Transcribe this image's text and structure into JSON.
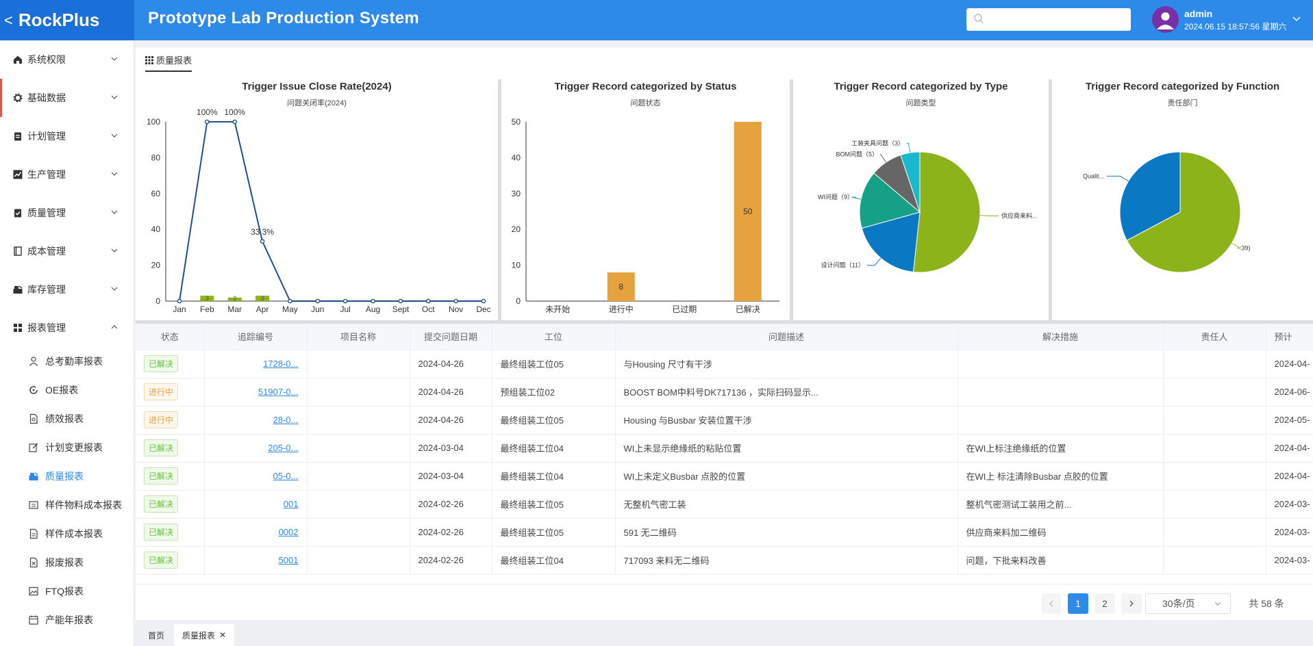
{
  "header": {
    "logo": "RockPlus",
    "title": "Prototype Lab Production System",
    "search_placeholder": "",
    "user": {
      "name": "admin",
      "datetime": "2024.06.15 18:57:56 星期六"
    }
  },
  "sidebar": {
    "menus": [
      "系统权限",
      "基础数据",
      "计划管理",
      "生产管理",
      "质量管理",
      "成本管理",
      "库存管理",
      "报表管理"
    ],
    "submenus": [
      "总考勤率报表",
      "OE报表",
      "绩效报表",
      "计划变更报表",
      "质量报表",
      "样件物料成本报表",
      "样件成本报表",
      "报废报表",
      "FTQ报表",
      "产能年报表"
    ],
    "active_submenu": "质量报表"
  },
  "page_tab": "质量报表",
  "chart_data": [
    {
      "type": "line",
      "title": "Trigger Issue Close Rate(2024)",
      "subtitle": "问题关闭率(2024)",
      "categories": [
        "Jan",
        "Feb",
        "Mar",
        "Apr",
        "May",
        "Jun",
        "Jul",
        "Aug",
        "Sept",
        "Oct",
        "Nov",
        "Dec"
      ],
      "series": [
        {
          "values": [
            0,
            100,
            100,
            33.3,
            0,
            0,
            0,
            0,
            0,
            0,
            0,
            0
          ]
        }
      ],
      "bars": [
        0,
        3,
        2,
        3,
        0,
        0,
        0,
        0,
        0,
        0,
        0,
        0
      ],
      "data_labels": [
        "",
        "100%",
        "100%",
        "33.3%",
        "",
        "",
        "",
        "",
        "",
        "",
        "",
        ""
      ],
      "bar_labels": [
        "",
        "3",
        "2",
        "3",
        "",
        "",
        "",
        "",
        "",
        "",
        "",
        ""
      ],
      "yticks": [
        0,
        20,
        40,
        60,
        80,
        100
      ],
      "ylim": [
        0,
        100
      ],
      "colors": {
        "line": "#1f4e8c",
        "bar": "#8db31a"
      }
    },
    {
      "type": "bar",
      "title": "Trigger Record categorized by Status",
      "subtitle": "问题状态",
      "categories": [
        "未开始",
        "进行中",
        "已过期",
        "已解决"
      ],
      "values": [
        0,
        8,
        0,
        50
      ],
      "data_labels": [
        "",
        "8",
        "",
        "50"
      ],
      "yticks": [
        0,
        10,
        20,
        30,
        40,
        50
      ],
      "ylim": [
        0,
        50
      ],
      "colors": {
        "bar": "#e6a23c"
      }
    },
    {
      "type": "pie",
      "title": "Trigger Record categorized by Type",
      "subtitle": "问题类型",
      "slices": [
        {
          "label": "供应商来料...",
          "value": 30,
          "color": "#8db31a"
        },
        {
          "label": "设计问题（11）",
          "value": 11,
          "color": "#0a78c2"
        },
        {
          "label": "WI问题（9）",
          "value": 9,
          "color": "#16a085"
        },
        {
          "label": "BOM问题（5）",
          "value": 5,
          "color": "#666666"
        },
        {
          "label": "工装夹具问题（3）",
          "value": 3,
          "color": "#19b8cc"
        }
      ]
    },
    {
      "type": "pie",
      "title": "Trigger Record categorized by Function",
      "subtitle": "责任部门",
      "slices": [
        {
          "label": ":39)",
          "value": 39,
          "color": "#8db31a"
        },
        {
          "label": "Qualit...",
          "value": 19,
          "color": "#0a78c2"
        }
      ]
    }
  ],
  "table": {
    "headers": [
      "状态",
      "追踪编号",
      "项目名称",
      "提交问题日期",
      "工位",
      "问题描述",
      "解决措施",
      "责任人",
      "预计"
    ],
    "rows": [
      {
        "status": "已解决",
        "status_type": "done",
        "id": "1728-0...",
        "project": "",
        "date": "2024-04-26",
        "station": "最终组装工位05",
        "desc": "与Housing 尺寸有干涉",
        "solution": "",
        "owner": "",
        "due": "2024-04-"
      },
      {
        "status": "进行中",
        "status_type": "prog",
        "id": "51907-0...",
        "project": "",
        "date": "2024-04-26",
        "station": "预组装工位02",
        "desc": "BOOST BOM中料号DK717136 ，实际扫码显示...",
        "solution": "",
        "owner": "",
        "due": "2024-06-"
      },
      {
        "status": "进行中",
        "status_type": "prog",
        "id": "28-0...",
        "project": "",
        "date": "2024-04-26",
        "station": "最终组装工位05",
        "desc": "Housing 与Busbar 安装位置干涉",
        "solution": "",
        "owner": "",
        "due": "2024-05-"
      },
      {
        "status": "已解决",
        "status_type": "done",
        "id": "205-0...",
        "project": "",
        "date": "2024-03-04",
        "station": "最终组装工位04",
        "desc": "WI上未显示绝缘纸的粘贴位置",
        "solution": "在WI上标注绝缘纸的位置",
        "owner": "",
        "due": "2024-04-"
      },
      {
        "status": "已解决",
        "status_type": "done",
        "id": "05-0...",
        "project": "",
        "date": "2024-03-04",
        "station": "最终组装工位04",
        "desc": "WI上未定义Busbar 点胶的位置",
        "solution": "在WI上 标注清除Busbar 点胶的位置",
        "owner": "",
        "due": "2024-04-"
      },
      {
        "status": "已解决",
        "status_type": "done",
        "id": "001",
        "project": "",
        "date": "2024-02-26",
        "station": "最终组装工位05",
        "desc": "无整机气密工装",
        "solution": "整机气密测试工装用之前...",
        "owner": "",
        "due": "2024-03-"
      },
      {
        "status": "已解决",
        "status_type": "done",
        "id": "0002",
        "project": "",
        "date": "2024-02-26",
        "station": "最终组装工位05",
        "desc": "591 无二维码",
        "solution": "供应商来料加二维码",
        "owner": "",
        "due": "2024-03-"
      },
      {
        "status": "已解决",
        "status_type": "done",
        "id": "5001",
        "project": "",
        "date": "2024-02-26",
        "station": "最终组装工位04",
        "desc": "717093 来料无二维码",
        "solution": "问题，下批来料改善",
        "owner": "",
        "due": "2024-03-"
      }
    ]
  },
  "pager": {
    "pages": [
      "1",
      "2"
    ],
    "current": "1",
    "page_size": "30条/页",
    "total": "共 58 条"
  },
  "bottom_tabs": [
    {
      "label": "首页"
    },
    {
      "label": "质量报表"
    }
  ]
}
